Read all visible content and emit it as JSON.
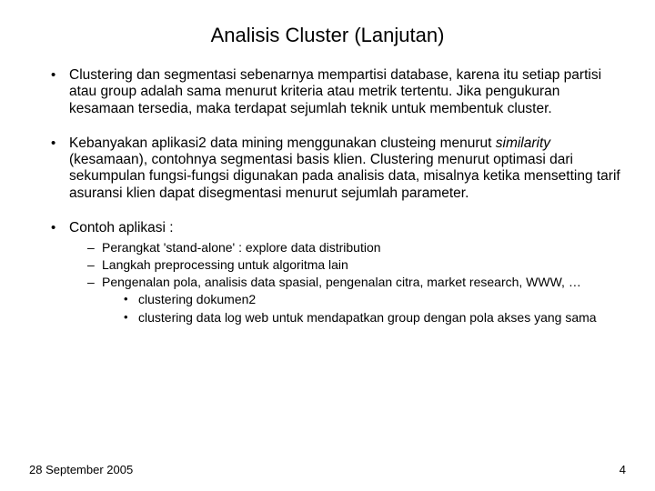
{
  "title": "Analisis Cluster (Lanjutan)",
  "bullets": {
    "b1": "Clustering dan segmentasi sebenarnya mempartisi database, karena itu setiap partisi atau group adalah sama menurut kriteria atau metrik tertentu. Jika pengukuran kesamaan tersedia, maka terdapat sejumlah teknik untuk membentuk cluster.",
    "b2_pre": "Kebanyakan aplikasi2 data mining menggunakan clusteing menurut ",
    "b2_italic": "similarity",
    "b2_post": " (kesamaan), contohnya segmentasi basis klien. Clustering menurut optimasi dari sekumpulan fungsi-fungsi digunakan pada analisis data, misalnya ketika mensetting tarif asuransi klien dapat disegmentasi menurut sejumlah parameter.",
    "b3": "Contoh aplikasi :"
  },
  "sub": {
    "s1": "Perangkat 'stand-alone' : explore data distribution",
    "s2": "Langkah preprocessing untuk algoritma lain",
    "s3": "Pengenalan pola, analisis data spasial, pengenalan citra, market research, WWW, …"
  },
  "subsub": {
    "ss1": "clustering dokumen2",
    "ss2": "clustering data log web untuk mendapatkan group dengan pola akses yang sama"
  },
  "footer": {
    "date": "28 September 2005",
    "page": "4"
  }
}
